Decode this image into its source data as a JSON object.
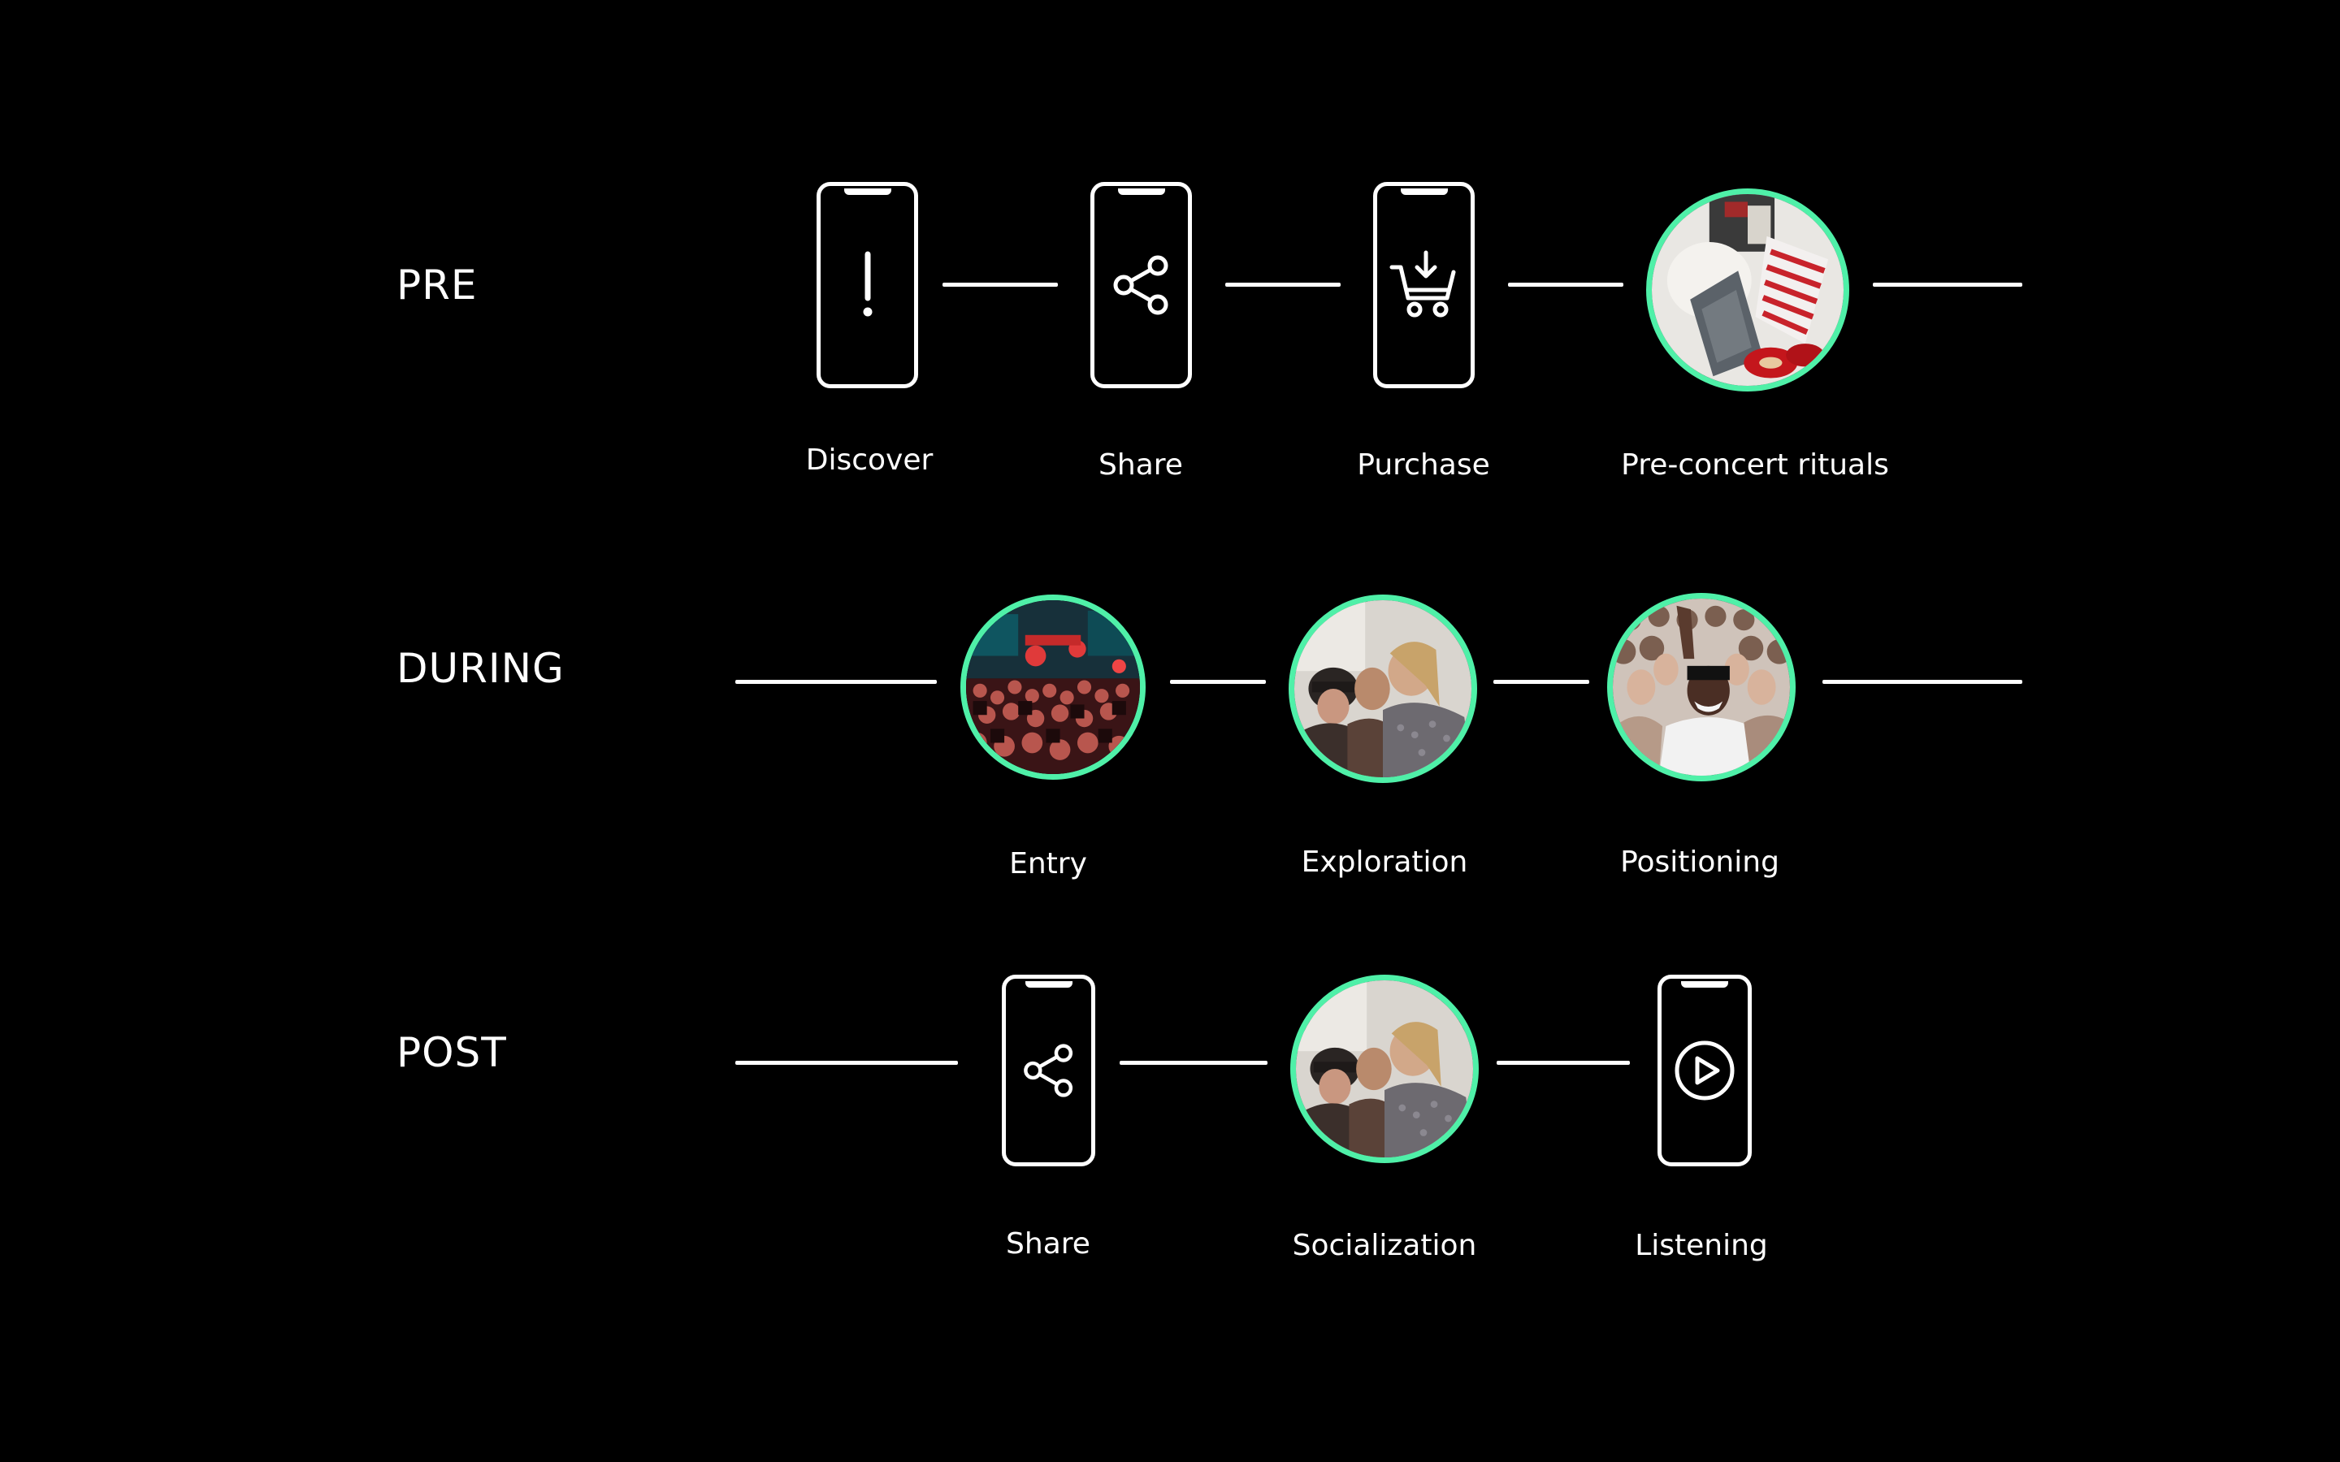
{
  "colors": {
    "background": "#000000",
    "foreground": "#ffffff",
    "accent_ring": "#4ff0a8"
  },
  "phases": {
    "pre": {
      "label": "PRE",
      "steps": [
        {
          "label": "Discover",
          "kind": "phone",
          "icon": "exclamation-icon"
        },
        {
          "label": "Share",
          "kind": "phone",
          "icon": "share-icon"
        },
        {
          "label": "Purchase",
          "kind": "phone",
          "icon": "cart-download-icon"
        },
        {
          "label": "Pre-concert rituals",
          "kind": "photo",
          "icon": "clothing-photo"
        }
      ]
    },
    "during": {
      "label": "DURING",
      "steps": [
        {
          "label": "Entry",
          "kind": "photo",
          "icon": "venue-crowd-photo"
        },
        {
          "label": "Exploration",
          "kind": "photo",
          "icon": "friends-laughing-photo"
        },
        {
          "label": "Positioning",
          "kind": "photo",
          "icon": "front-row-crowd-photo"
        }
      ]
    },
    "post": {
      "label": "POST",
      "steps": [
        {
          "label": "Share",
          "kind": "phone",
          "icon": "share-icon"
        },
        {
          "label": "Socialization",
          "kind": "photo",
          "icon": "friends-laughing-photo"
        },
        {
          "label": "Listening",
          "kind": "phone",
          "icon": "play-icon"
        }
      ]
    }
  }
}
